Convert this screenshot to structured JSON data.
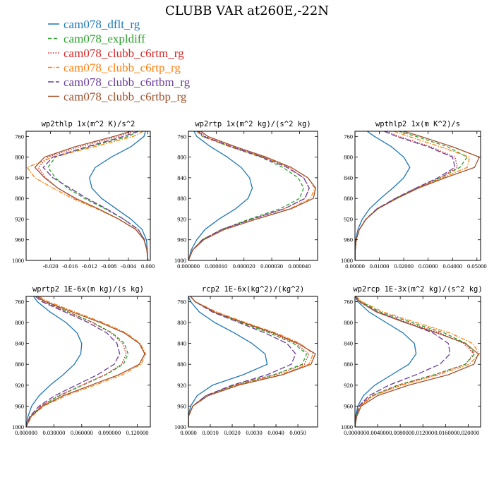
{
  "figure": {
    "title": "CLUBB VAR at260E,-22N",
    "legend": [
      {
        "name": "cam078_dflt_rg",
        "color": "#1f77b4",
        "dash": "solid"
      },
      {
        "name": "cam078_expldiff",
        "color": "#2ca02c",
        "dash": "dash"
      },
      {
        "name": "cam078_clubb_c6rtm_rg",
        "color": "#d62728",
        "dash": "dot"
      },
      {
        "name": "cam078_clubb_c6rtp_rg",
        "color": "#ff7f0e",
        "dash": "dashdot"
      },
      {
        "name": "cam078_clubb_c6rtbm_rg",
        "color": "#6a3d9a",
        "dash": "longdash"
      },
      {
        "name": "cam078_clubb_c6rtbp_rg",
        "color": "#a0522d",
        "dash": "solid"
      }
    ]
  },
  "chart_data": [
    {
      "type": "line",
      "title": "wp2thlp  1x(m^2 K)/s^2",
      "xlim": [
        -0.025,
        0.0005
      ],
      "ylim": [
        1000,
        750
      ],
      "xticks": [
        -0.02,
        -0.016,
        -0.012,
        -0.008,
        -0.004,
        0.0
      ],
      "xticklabels": [
        "-0.020",
        "-0.016",
        "-0.012",
        "-0.008",
        "-0.004",
        "0.000"
      ],
      "yticks": [
        760,
        800,
        840,
        880,
        920,
        960,
        1000
      ],
      "y": [
        750,
        760,
        780,
        800,
        820,
        840,
        860,
        880,
        900,
        920,
        940,
        960,
        980,
        1000
      ],
      "series": [
        {
          "name": "cam078_dflt_rg",
          "x": [
            -0.0005,
            -0.0008,
            -0.0035,
            -0.0075,
            -0.0108,
            -0.012,
            -0.0115,
            -0.0095,
            -0.0065,
            -0.0035,
            -0.0012,
            -0.0003,
            -0.0001,
            0
          ]
        },
        {
          "name": "cam078_expldiff",
          "x": [
            -0.002,
            -0.004,
            -0.012,
            -0.019,
            -0.0205,
            -0.019,
            -0.0165,
            -0.013,
            -0.0088,
            -0.005,
            -0.002,
            -0.0007,
            -0.0002,
            0
          ]
        },
        {
          "name": "cam078_clubb_c6rtm_rg",
          "x": [
            -0.003,
            -0.006,
            -0.014,
            -0.0205,
            -0.0225,
            -0.021,
            -0.0185,
            -0.015,
            -0.0102,
            -0.006,
            -0.0025,
            -0.0008,
            -0.0002,
            0
          ]
        },
        {
          "name": "cam078_clubb_c6rtp_rg",
          "x": [
            -0.001,
            -0.003,
            -0.011,
            -0.0195,
            -0.0248,
            -0.0232,
            -0.0195,
            -0.0155,
            -0.0105,
            -0.006,
            -0.0025,
            -0.0008,
            -0.0002,
            0
          ]
        },
        {
          "name": "cam078_clubb_c6rtbm_rg",
          "x": [
            -0.002,
            -0.005,
            -0.0125,
            -0.0195,
            -0.0215,
            -0.0195,
            -0.016,
            -0.0125,
            -0.0085,
            -0.005,
            -0.002,
            -0.0007,
            -0.0002,
            0
          ]
        },
        {
          "name": "cam078_clubb_c6rtbp_rg",
          "x": [
            -0.0035,
            -0.007,
            -0.015,
            -0.0212,
            -0.0232,
            -0.0212,
            -0.0185,
            -0.0148,
            -0.0102,
            -0.006,
            -0.0025,
            -0.0008,
            -0.0002,
            0
          ]
        }
      ]
    },
    {
      "type": "line",
      "title": "wp2rtp  1x(m^2 kg)/(s^2 kg)",
      "xlim": [
        0,
        4.65e-05
      ],
      "ylim": [
        1000,
        750
      ],
      "xticks": [
        0,
        1e-05,
        2e-05,
        3e-05,
        4e-05
      ],
      "xticklabels": [
        "0.000000",
        "0.000010",
        "0.000020",
        "0.000030",
        "0.000040"
      ],
      "yticks": [
        760,
        800,
        840,
        880,
        920,
        960,
        1000
      ],
      "y": [
        750,
        760,
        780,
        800,
        820,
        840,
        860,
        880,
        900,
        920,
        940,
        960,
        980,
        1000
      ],
      "series": [
        {
          "name": "cam078_dflt_rg",
          "x": [
            2e-06,
            3e-06,
            8e-06,
            1.4e-05,
            1.9e-05,
            2.2e-05,
            2.3e-05,
            2.15e-05,
            1.7e-05,
            1.1e-05,
            6e-06,
            3e-06,
            1e-06,
            0
          ]
        },
        {
          "name": "cam078_expldiff",
          "x": [
            3e-06,
            5e-06,
            1.5e-05,
            2.6e-05,
            3.4e-05,
            3.95e-05,
            4.15e-05,
            4e-05,
            3.3e-05,
            2.2e-05,
            1.2e-05,
            5e-06,
            1.5e-06,
            0
          ]
        },
        {
          "name": "cam078_clubb_c6rtm_rg",
          "x": [
            4e-06,
            6e-06,
            1.6e-05,
            2.7e-05,
            3.6e-05,
            4.15e-05,
            4.35e-05,
            4.2e-05,
            3.45e-05,
            2.3e-05,
            1.2e-05,
            5e-06,
            1.5e-06,
            0
          ]
        },
        {
          "name": "cam078_clubb_c6rtp_rg",
          "x": [
            3e-06,
            5e-06,
            1.5e-05,
            2.7e-05,
            3.7e-05,
            4.3e-05,
            4.55e-05,
            4.4e-05,
            3.65e-05,
            2.45e-05,
            1.3e-05,
            5.5e-06,
            1.5e-06,
            0
          ]
        },
        {
          "name": "cam078_clubb_c6rtbm_rg",
          "x": [
            3.5e-06,
            5.5e-06,
            1.55e-05,
            2.65e-05,
            3.55e-05,
            4.15e-05,
            4.35e-05,
            4.2e-05,
            3.45e-05,
            2.3e-05,
            1.2e-05,
            5e-06,
            1.5e-06,
            0
          ]
        },
        {
          "name": "cam078_clubb_c6rtbp_rg",
          "x": [
            4.5e-06,
            7e-06,
            1.7e-05,
            2.8e-05,
            3.7e-05,
            4.3e-05,
            4.58e-05,
            4.5e-05,
            3.7e-05,
            2.45e-05,
            1.3e-05,
            5.5e-06,
            1.5e-06,
            0
          ]
        }
      ]
    },
    {
      "type": "line",
      "title": "wpthlp2  1x(m K^2)/s",
      "xlim": [
        0,
        0.0515
      ],
      "ylim": [
        1000,
        750
      ],
      "xticks": [
        0,
        0.01,
        0.02,
        0.03,
        0.04,
        0.05
      ],
      "xticklabels": [
        "0.00000",
        "0.01000",
        "0.02000",
        "0.03000",
        "0.04000",
        "0.05000"
      ],
      "yticks": [
        760,
        800,
        840,
        880,
        920,
        960,
        1000
      ],
      "y": [
        750,
        760,
        780,
        800,
        820,
        840,
        860,
        880,
        900,
        920,
        940,
        960,
        980,
        1000
      ],
      "series": [
        {
          "name": "cam078_dflt_rg",
          "x": [
            0.005,
            0.008,
            0.015,
            0.02,
            0.0225,
            0.02,
            0.0155,
            0.0105,
            0.006,
            0.003,
            0.0012,
            0.0003,
            0.0001,
            0
          ]
        },
        {
          "name": "cam078_expldiff",
          "x": [
            0.018,
            0.025,
            0.038,
            0.046,
            0.043,
            0.035,
            0.025,
            0.0165,
            0.009,
            0.0045,
            0.0018,
            0.0005,
            0.0001,
            0
          ]
        },
        {
          "name": "cam078_clubb_c6rtm_rg",
          "x": [
            0.013,
            0.018,
            0.031,
            0.041,
            0.042,
            0.035,
            0.0255,
            0.017,
            0.0093,
            0.0045,
            0.0018,
            0.0005,
            0.0001,
            0
          ]
        },
        {
          "name": "cam078_clubb_c6rtp_rg",
          "x": [
            0.016,
            0.022,
            0.035,
            0.047,
            0.046,
            0.036,
            0.0255,
            0.017,
            0.0093,
            0.0045,
            0.0018,
            0.0005,
            0.0001,
            0
          ]
        },
        {
          "name": "cam078_clubb_c6rtbm_rg",
          "x": [
            0.012,
            0.017,
            0.03,
            0.04,
            0.041,
            0.034,
            0.025,
            0.0165,
            0.009,
            0.0045,
            0.0018,
            0.0005,
            0.0001,
            0
          ]
        },
        {
          "name": "cam078_clubb_c6rtbp_rg",
          "x": [
            0.02,
            0.027,
            0.04,
            0.051,
            0.049,
            0.037,
            0.026,
            0.0172,
            0.0094,
            0.0046,
            0.0018,
            0.0005,
            0.0001,
            0
          ]
        }
      ]
    },
    {
      "type": "line",
      "title": "wprtp2  1E-6x(m kg)/(s kg)",
      "xlim": [
        0,
        0.134
      ],
      "ylim": [
        1000,
        750
      ],
      "xticks": [
        0,
        0.03,
        0.06,
        0.09,
        0.12
      ],
      "xticklabels": [
        "0.000000",
        "0.030000",
        "0.060000",
        "0.090000",
        "0.120000"
      ],
      "yticks": [
        760,
        800,
        840,
        880,
        920,
        960,
        1000
      ],
      "y": [
        750,
        760,
        780,
        800,
        820,
        840,
        860,
        880,
        900,
        920,
        940,
        960,
        980,
        1000
      ],
      "series": [
        {
          "name": "cam078_dflt_rg",
          "x": [
            0.008,
            0.012,
            0.026,
            0.043,
            0.055,
            0.06,
            0.059,
            0.052,
            0.04,
            0.026,
            0.014,
            0.006,
            0.002,
            0
          ]
        },
        {
          "name": "cam078_expldiff",
          "x": [
            0.012,
            0.02,
            0.046,
            0.072,
            0.093,
            0.106,
            0.11,
            0.105,
            0.086,
            0.061,
            0.036,
            0.016,
            0.005,
            0
          ]
        },
        {
          "name": "cam078_clubb_c6rtm_rg",
          "x": [
            0.011,
            0.019,
            0.045,
            0.071,
            0.092,
            0.104,
            0.108,
            0.103,
            0.085,
            0.06,
            0.035,
            0.016,
            0.005,
            0
          ]
        },
        {
          "name": "cam078_clubb_c6rtp_rg",
          "x": [
            0.014,
            0.024,
            0.053,
            0.083,
            0.108,
            0.123,
            0.129,
            0.124,
            0.104,
            0.074,
            0.043,
            0.019,
            0.006,
            0
          ]
        },
        {
          "name": "cam078_clubb_c6rtbm_rg",
          "x": [
            0.01,
            0.017,
            0.042,
            0.067,
            0.087,
            0.098,
            0.101,
            0.095,
            0.077,
            0.054,
            0.031,
            0.014,
            0.004,
            0
          ]
        },
        {
          "name": "cam078_clubb_c6rtbp_rg",
          "x": [
            0.012,
            0.021,
            0.05,
            0.08,
            0.106,
            0.122,
            0.128,
            0.122,
            0.1,
            0.07,
            0.04,
            0.018,
            0.005,
            0
          ]
        }
      ]
    },
    {
      "type": "line",
      "title": "rcp2  1E-6x(kg^2)/(kg^2)",
      "xlim": [
        0,
        0.0059
      ],
      "ylim": [
        1000,
        750
      ],
      "xticks": [
        0,
        0.001,
        0.002,
        0.003,
        0.004,
        0.005
      ],
      "xticklabels": [
        "0.0000",
        "0.0010",
        "0.0020",
        "0.0030",
        "0.0040",
        "0.0050"
      ],
      "yticks": [
        760,
        800,
        840,
        880,
        920,
        960,
        1000
      ],
      "y": [
        750,
        760,
        780,
        800,
        820,
        840,
        860,
        880,
        900,
        920,
        940,
        960,
        980,
        1000
      ],
      "series": [
        {
          "name": "cam078_dflt_rg",
          "x": [
            0,
            0.0001,
            0.0005,
            0.0012,
            0.0021,
            0.0029,
            0.0035,
            0.0036,
            0.0025,
            0.0011,
            0.0004,
            0.0001,
            0,
            0
          ]
        },
        {
          "name": "cam078_expldiff",
          "x": [
            0.0001,
            0.0003,
            0.0012,
            0.0024,
            0.0037,
            0.0048,
            0.0054,
            0.0052,
            0.0039,
            0.0021,
            0.0008,
            0.0002,
            0,
            0
          ]
        },
        {
          "name": "cam078_clubb_c6rtm_rg",
          "x": [
            0.0001,
            0.0003,
            0.0012,
            0.0025,
            0.0038,
            0.0049,
            0.0055,
            0.0053,
            0.004,
            0.0021,
            0.0008,
            0.0002,
            0,
            0
          ]
        },
        {
          "name": "cam078_clubb_c6rtp_rg",
          "x": [
            0.0001,
            0.0003,
            0.0013,
            0.0026,
            0.004,
            0.0051,
            0.0057,
            0.0055,
            0.0042,
            0.0022,
            0.0009,
            0.0002,
            0,
            0
          ]
        },
        {
          "name": "cam078_clubb_c6rtbm_rg",
          "x": [
            0.0001,
            0.0003,
            0.0011,
            0.0023,
            0.0035,
            0.0045,
            0.0049,
            0.0047,
            0.0036,
            0.002,
            0.0008,
            0.0002,
            0,
            0
          ]
        },
        {
          "name": "cam078_clubb_c6rtbp_rg",
          "x": [
            0.0001,
            0.0003,
            0.0012,
            0.0025,
            0.0039,
            0.005,
            0.0058,
            0.0056,
            0.0043,
            0.0023,
            0.0009,
            0.0002,
            0,
            0
          ]
        }
      ]
    },
    {
      "type": "line",
      "title": "wp2rcp  1E-3x(m^2 kg)/(s^2 kg)",
      "xlim": [
        0,
        0.0222
      ],
      "ylim": [
        1000,
        750
      ],
      "xticks": [
        0,
        0.004,
        0.008,
        0.012,
        0.016,
        0.02
      ],
      "xticklabels": [
        "0.000000",
        "0.004000",
        "0.008000",
        "0.012000",
        "0.016000",
        "0.020000"
      ],
      "yticks": [
        760,
        800,
        840,
        880,
        920,
        960,
        1000
      ],
      "y": [
        750,
        760,
        780,
        800,
        820,
        840,
        860,
        880,
        900,
        920,
        940,
        960,
        980,
        1000
      ],
      "series": [
        {
          "name": "cam078_dflt_rg",
          "x": [
            0,
            0.0005,
            0.0025,
            0.0055,
            0.0085,
            0.0105,
            0.0108,
            0.0095,
            0.0065,
            0.0035,
            0.0015,
            0.0005,
            0.0001,
            0
          ]
        },
        {
          "name": "cam078_expldiff",
          "x": [
            0.0001,
            0.001,
            0.0045,
            0.01,
            0.0158,
            0.0196,
            0.0212,
            0.0195,
            0.014,
            0.0075,
            0.003,
            0.0008,
            0.0002,
            0
          ]
        },
        {
          "name": "cam078_clubb_c6rtm_rg",
          "x": [
            0.0001,
            0.0008,
            0.004,
            0.0092,
            0.015,
            0.0192,
            0.021,
            0.0195,
            0.0142,
            0.0078,
            0.0031,
            0.0008,
            0.0002,
            0
          ]
        },
        {
          "name": "cam078_clubb_c6rtp_rg",
          "x": [
            0.0002,
            0.0012,
            0.005,
            0.0108,
            0.0168,
            0.0208,
            0.022,
            0.0202,
            0.0148,
            0.0082,
            0.0033,
            0.0009,
            0.0002,
            0
          ]
        },
        {
          "name": "cam078_clubb_c6rtbm_rg",
          "x": [
            0.0001,
            0.0008,
            0.004,
            0.009,
            0.0138,
            0.0165,
            0.0168,
            0.015,
            0.0108,
            0.006,
            0.0025,
            0.0007,
            0.0002,
            0
          ]
        },
        {
          "name": "cam078_clubb_c6rtbp_rg",
          "x": [
            0.0001,
            0.0008,
            0.0038,
            0.0088,
            0.0145,
            0.0195,
            0.0218,
            0.021,
            0.0165,
            0.0095,
            0.004,
            0.0011,
            0.0003,
            0
          ]
        }
      ]
    }
  ]
}
